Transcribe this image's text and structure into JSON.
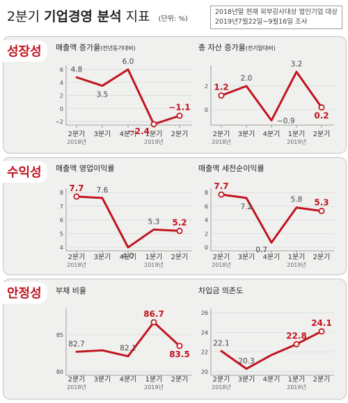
{
  "header": {
    "title_light": "2분기",
    "title_bold": "기업경영 분석",
    "title_suffix": "지표",
    "unit": "(단위: %)",
    "source_line1": "2018년말 현재 외부감사대상 법인기업 대상",
    "source_line2": "2019년7월22일~9월16일 조사"
  },
  "sections": [
    {
      "name": "성장성"
    },
    {
      "name": "수익성"
    },
    {
      "name": "안정성"
    }
  ],
  "colors": {
    "line": "#c0141e",
    "accent_text": "#c0141e",
    "label_text": "#444444",
    "axis": "#888888"
  },
  "chart_data": [
    {
      "type": "line",
      "section": "성장성",
      "title": "매출액 증가율",
      "title_note": "(전년동기대비)",
      "categories": [
        "2분기",
        "3분기",
        "4분기",
        "1분기",
        "2분기"
      ],
      "year_labels": [
        "2018년",
        "",
        "",
        "2019년",
        ""
      ],
      "values": [
        4.8,
        3.5,
        6.0,
        -2.4,
        -1.1
      ],
      "value_labels": [
        "4.8",
        "3.5",
        "6.0",
        "−2.4",
        "−1.1"
      ],
      "highlight": [
        false,
        false,
        false,
        true,
        true
      ],
      "label_pos": [
        "above",
        "below",
        "above",
        "left",
        "above"
      ],
      "yticks": [
        "6",
        "4",
        "2",
        "0",
        "−2"
      ],
      "ylim": [
        -2,
        6
      ],
      "ytick_values": [
        6,
        4,
        2,
        0,
        -2
      ]
    },
    {
      "type": "line",
      "section": "성장성",
      "title": "총 자산 증가율",
      "title_note": "(전기말대비)",
      "categories": [
        "2분기",
        "3분기",
        "4분기",
        "1분기",
        "2분기"
      ],
      "year_labels": [
        "2018년",
        "",
        "",
        "2019년",
        ""
      ],
      "values": [
        1.2,
        2.0,
        -0.9,
        3.2,
        0.2
      ],
      "value_labels": [
        "1.2",
        "2.0",
        "−0.9",
        "3.2",
        "0.2"
      ],
      "highlight": [
        true,
        false,
        false,
        false,
        true
      ],
      "label_pos": [
        "above",
        "above",
        "right",
        "above",
        "below"
      ],
      "yticks": [
        "2",
        "0"
      ],
      "ylim": [
        -1,
        3.4
      ],
      "ytick_values": [
        2,
        0
      ]
    },
    {
      "type": "line",
      "section": "수익성",
      "title": "매출액 영업이익률",
      "title_note": "",
      "categories": [
        "2분기",
        "3분기",
        "4분기",
        "1분기",
        "2분기"
      ],
      "year_labels": [
        "2018년",
        "",
        "",
        "2019년",
        ""
      ],
      "values": [
        7.7,
        7.6,
        4.0,
        5.3,
        5.2
      ],
      "value_labels": [
        "7.7",
        "7.6",
        "4.0",
        "5.3",
        "5.2"
      ],
      "highlight": [
        true,
        false,
        false,
        false,
        true
      ],
      "label_pos": [
        "above",
        "above",
        "below",
        "above",
        "above"
      ],
      "yticks": [
        "8",
        "7",
        "6",
        "5",
        "4"
      ],
      "ylim": [
        4,
        8
      ],
      "ytick_values": [
        8,
        7,
        6,
        5,
        4
      ]
    },
    {
      "type": "line",
      "section": "수익성",
      "title": "매출액 세전순이익률",
      "title_note": "",
      "categories": [
        "2분기",
        "3분기",
        "4분기",
        "1분기",
        "2분기"
      ],
      "year_labels": [
        "2018년",
        "",
        "",
        "2019년",
        ""
      ],
      "values": [
        7.7,
        7.2,
        0.7,
        5.8,
        5.3
      ],
      "value_labels": [
        "7.7",
        "7.2",
        "0.7",
        "5.8",
        "5.3"
      ],
      "highlight": [
        true,
        false,
        false,
        false,
        true
      ],
      "label_pos": [
        "above",
        "below",
        "left",
        "above",
        "above"
      ],
      "yticks": [
        "8",
        "6",
        "4",
        "2",
        "0"
      ],
      "ylim": [
        0,
        8
      ],
      "ytick_values": [
        8,
        6,
        4,
        2,
        0
      ]
    },
    {
      "type": "line",
      "section": "안정성",
      "title": "부채 비율",
      "title_note": "",
      "categories": [
        "2분기",
        "3분기",
        "4분기",
        "1분기",
        "2분기"
      ],
      "year_labels": [
        "2018년",
        "",
        "",
        "2019년",
        ""
      ],
      "values": [
        82.7,
        82.9,
        82.1,
        86.7,
        83.5
      ],
      "value_labels": [
        "82.7",
        "",
        "82.1",
        "86.7",
        "83.5"
      ],
      "highlight": [
        false,
        false,
        false,
        true,
        true
      ],
      "label_pos": [
        "above",
        "above",
        "above",
        "above",
        "below"
      ],
      "yticks": [
        "85",
        "80"
      ],
      "ylim": [
        80,
        88
      ],
      "ytick_values": [
        85,
        80
      ]
    },
    {
      "type": "line",
      "section": "안정성",
      "title": "차입금 의존도",
      "title_note": "",
      "categories": [
        "2분기",
        "3분기",
        "4분기",
        "1분기",
        "2분기"
      ],
      "year_labels": [
        "2018년",
        "",
        "",
        "2019년",
        ""
      ],
      "values": [
        22.1,
        20.3,
        21.7,
        22.8,
        24.1
      ],
      "value_labels": [
        "22.1",
        "20.3",
        "",
        "22.8",
        "24.1"
      ],
      "highlight": [
        false,
        false,
        false,
        true,
        true
      ],
      "label_pos": [
        "above",
        "above",
        "above",
        "above",
        "above"
      ],
      "yticks": [
        "26",
        "24",
        "22",
        "20"
      ],
      "ylim": [
        20,
        26
      ],
      "ytick_values": [
        26,
        24,
        22,
        20
      ]
    }
  ]
}
